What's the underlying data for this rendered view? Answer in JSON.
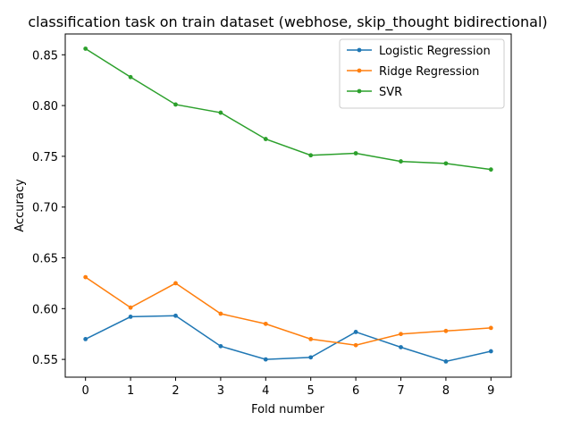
{
  "chart_data": {
    "type": "line",
    "title": "classification task on train dataset (webhose, skip_thought bidirectional)",
    "xlabel": "Fold number",
    "ylabel": "Accuracy",
    "x": [
      0,
      1,
      2,
      3,
      4,
      5,
      6,
      7,
      8,
      9
    ],
    "xticks": [
      "0",
      "1",
      "2",
      "3",
      "4",
      "5",
      "6",
      "7",
      "8",
      "9"
    ],
    "xlim": [
      -0.45,
      9.45
    ],
    "yticks": [
      "0.55",
      "0.60",
      "0.65",
      "0.70",
      "0.75",
      "0.80",
      "0.85"
    ],
    "ylim": [
      0.5325,
      0.8705
    ],
    "grid": false,
    "legend_position": "top-right",
    "series": [
      {
        "name": "Logistic Regression",
        "color": "#1f77b4",
        "values": [
          0.57,
          0.592,
          0.593,
          0.563,
          0.55,
          0.552,
          0.577,
          0.562,
          0.548,
          0.558
        ]
      },
      {
        "name": "Ridge Regression",
        "color": "#ff7f0e",
        "values": [
          0.631,
          0.601,
          0.625,
          0.595,
          0.585,
          0.57,
          0.564,
          0.575,
          0.578,
          0.581
        ]
      },
      {
        "name": "SVR",
        "color": "#2ca02c",
        "values": [
          0.856,
          0.828,
          0.801,
          0.793,
          0.767,
          0.751,
          0.753,
          0.745,
          0.743,
          0.737
        ]
      }
    ]
  }
}
